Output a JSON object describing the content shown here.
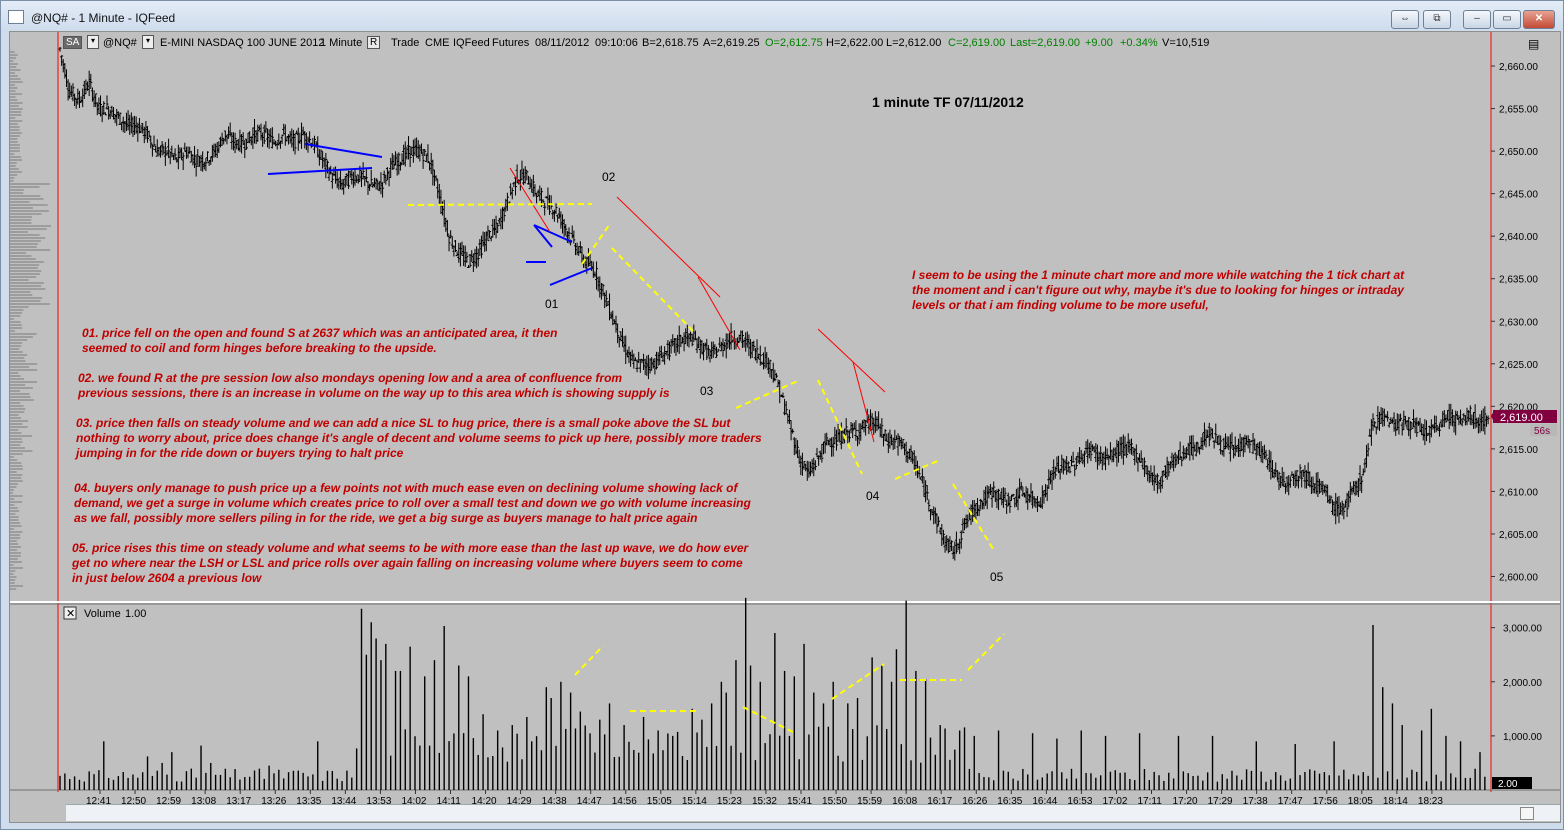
{
  "window": {
    "title": "@NQ# - 1 Minute - IQFeed",
    "controls": [
      "⇔",
      "⧉",
      "–",
      "▭",
      "✕"
    ]
  },
  "toolbar": {
    "sa_label": "SA",
    "symbol": "@NQ#",
    "description": "E-MINI NASDAQ 100 JUNE 2012",
    "interval": "1 Minute",
    "r_label": "R",
    "trade": "Trade",
    "exchange": "CME",
    "feed": "IQFeed",
    "type": "Futures",
    "date": "08/11/2012",
    "time": "09:10:06",
    "bid": "B=2,618.75",
    "ask": "A=2,619.25",
    "open": "O=2,612.75",
    "high": "H=2,622.00",
    "low": "L=2,612.00",
    "close": "C=2,619.00",
    "last": "Last=2,619.00",
    "change": "+9.00",
    "change_pct": "+0.34%",
    "volume": "V=10,519"
  },
  "colors": {
    "background": "#c0c0c0",
    "bars": "#000000",
    "annotation_text": "#c00000",
    "trendline": "#ff0000",
    "pattern_line": "#0000ff",
    "dashed_line": "#ffff00",
    "price_label_bg": "#800040",
    "up_text": "#008000"
  },
  "chart_data": [
    {
      "type": "ohlc",
      "title": "1 minute  TF 07/11/2012",
      "x_tick_labels": [
        "12:41",
        "12:50",
        "12:59",
        "13:08",
        "13:17",
        "13:26",
        "13:35",
        "13:44",
        "13:53",
        "14:02",
        "14:11",
        "14:20",
        "14:29",
        "14:38",
        "14:47",
        "14:56",
        "15:05",
        "15:14",
        "15:23",
        "15:32",
        "15:41",
        "15:50",
        "15:59",
        "16:08",
        "16:17",
        "16:26",
        "16:35",
        "16:44",
        "16:53",
        "17:02",
        "17:11",
        "17:20",
        "17:29",
        "17:38",
        "17:47",
        "17:56",
        "18:05",
        "18:14",
        "18:23"
      ],
      "y_tick_labels": [
        "2,660.00",
        "2,655.00",
        "2,650.00",
        "2,645.00",
        "2,640.00",
        "2,635.00",
        "2,630.00",
        "2,625.00",
        "2,620.00",
        "2,615.00",
        "2,610.00",
        "2,605.00",
        "2,600.00"
      ],
      "ylim": [
        2597,
        2664
      ],
      "current_price_label": "2,619.00",
      "timer_label": "56s",
      "close_path": [
        [
          0,
          2662
        ],
        [
          6,
          2657
        ],
        [
          12,
          2656
        ],
        [
          18,
          2658
        ],
        [
          24,
          2655
        ],
        [
          30,
          2655
        ],
        [
          36,
          2654
        ],
        [
          42,
          2653
        ],
        [
          48,
          2653
        ],
        [
          54,
          2652
        ],
        [
          60,
          2650
        ],
        [
          66,
          2650
        ],
        [
          72,
          2649
        ],
        [
          78,
          2650
        ],
        [
          84,
          2649
        ],
        [
          90,
          2649
        ],
        [
          96,
          2650
        ],
        [
          102,
          2652
        ],
        [
          108,
          2651
        ],
        [
          114,
          2651
        ],
        [
          120,
          2652
        ],
        [
          126,
          2652
        ],
        [
          132,
          2651
        ],
        [
          138,
          2652
        ],
        [
          144,
          2651
        ],
        [
          150,
          2652
        ],
        [
          156,
          2651
        ],
        [
          162,
          2649
        ],
        [
          168,
          2647
        ],
        [
          174,
          2646
        ],
        [
          180,
          2647
        ],
        [
          186,
          2647
        ],
        [
          192,
          2646
        ],
        [
          198,
          2646
        ],
        [
          204,
          2648
        ],
        [
          210,
          2649
        ],
        [
          216,
          2650
        ],
        [
          222,
          2650
        ],
        [
          228,
          2649
        ],
        [
          234,
          2645
        ],
        [
          240,
          2640
        ],
        [
          246,
          2638
        ],
        [
          252,
          2637
        ],
        [
          258,
          2638
        ],
        [
          264,
          2640
        ],
        [
          270,
          2641
        ],
        [
          276,
          2644
        ],
        [
          282,
          2647
        ],
        [
          288,
          2647
        ],
        [
          294,
          2645
        ],
        [
          300,
          2644
        ],
        [
          306,
          2643
        ],
        [
          312,
          2641
        ],
        [
          318,
          2639
        ],
        [
          324,
          2637
        ],
        [
          330,
          2636
        ],
        [
          336,
          2633
        ],
        [
          342,
          2630
        ],
        [
          348,
          2627
        ],
        [
          354,
          2625
        ],
        [
          360,
          2625
        ],
        [
          366,
          2625
        ],
        [
          372,
          2626
        ],
        [
          378,
          2627
        ],
        [
          384,
          2628
        ],
        [
          390,
          2628
        ],
        [
          396,
          2627
        ],
        [
          402,
          2626
        ],
        [
          408,
          2627
        ],
        [
          414,
          2628
        ],
        [
          420,
          2628
        ],
        [
          426,
          2627
        ],
        [
          432,
          2626
        ],
        [
          438,
          2625
        ],
        [
          444,
          2622
        ],
        [
          450,
          2618
        ],
        [
          456,
          2614
        ],
        [
          462,
          2612
        ],
        [
          468,
          2614
        ],
        [
          474,
          2616
        ],
        [
          480,
          2616
        ],
        [
          486,
          2617
        ],
        [
          492,
          2617
        ],
        [
          498,
          2618
        ],
        [
          504,
          2618
        ],
        [
          510,
          2616
        ],
        [
          516,
          2616
        ],
        [
          522,
          2615
        ],
        [
          528,
          2613
        ],
        [
          534,
          2610
        ],
        [
          540,
          2607
        ],
        [
          546,
          2604
        ],
        [
          552,
          2603
        ],
        [
          558,
          2606
        ],
        [
          564,
          2608
        ],
        [
          570,
          2609
        ],
        [
          576,
          2610
        ],
        [
          582,
          2609
        ],
        [
          588,
          2609
        ],
        [
          594,
          2610
        ],
        [
          600,
          2609
        ],
        [
          606,
          2609
        ],
        [
          612,
          2612
        ],
        [
          618,
          2613
        ],
        [
          624,
          2613
        ],
        [
          630,
          2614
        ],
        [
          636,
          2615
        ],
        [
          642,
          2614
        ],
        [
          648,
          2614
        ],
        [
          654,
          2615
        ],
        [
          660,
          2615
        ],
        [
          666,
          2614
        ],
        [
          672,
          2612
        ],
        [
          678,
          2611
        ],
        [
          684,
          2613
        ],
        [
          690,
          2614
        ],
        [
          696,
          2615
        ],
        [
          702,
          2615
        ],
        [
          708,
          2617
        ],
        [
          714,
          2616
        ],
        [
          720,
          2615
        ],
        [
          726,
          2615
        ],
        [
          732,
          2616
        ],
        [
          738,
          2615
        ],
        [
          744,
          2614
        ],
        [
          750,
          2612
        ],
        [
          756,
          2611
        ],
        [
          762,
          2612
        ],
        [
          768,
          2612
        ],
        [
          774,
          2611
        ],
        [
          780,
          2610
        ],
        [
          786,
          2608
        ],
        [
          792,
          2608
        ],
        [
          798,
          2610
        ],
        [
          804,
          2612
        ],
        [
          810,
          2618
        ],
        [
          816,
          2619
        ],
        [
          822,
          2618
        ],
        [
          828,
          2618
        ],
        [
          834,
          2618
        ],
        [
          840,
          2617
        ],
        [
          846,
          2617
        ],
        [
          852,
          2618
        ],
        [
          858,
          2619
        ],
        [
          864,
          2618
        ],
        [
          870,
          2619
        ],
        [
          876,
          2618
        ],
        [
          882,
          2619
        ]
      ]
    },
    {
      "type": "bar",
      "title": "Volume",
      "scale_label": "1.00",
      "y_tick_labels": [
        "3,000.00",
        "2,000.00",
        "1,000.00"
      ],
      "ylim": [
        0,
        3400
      ],
      "current_value_label": "2.00",
      "spikes": [
        [
          28,
          900
        ],
        [
          55,
          620
        ],
        [
          63,
          500
        ],
        [
          70,
          700
        ],
        [
          87,
          820
        ],
        [
          93,
          500
        ],
        [
          130,
          450
        ],
        [
          159,
          900
        ],
        [
          186,
          3350
        ],
        [
          189,
          2500
        ],
        [
          192,
          3100
        ],
        [
          195,
          2800
        ],
        [
          199,
          2400
        ],
        [
          203,
          2700
        ],
        [
          207,
          2200
        ],
        [
          212,
          2200
        ],
        [
          217,
          2650
        ],
        [
          225,
          2100
        ],
        [
          231,
          2400
        ],
        [
          238,
          3030
        ],
        [
          246,
          2300
        ],
        [
          254,
          2100
        ],
        [
          262,
          1400
        ],
        [
          270,
          1100
        ],
        [
          280,
          1200
        ],
        [
          290,
          1350
        ],
        [
          300,
          1900
        ],
        [
          305,
          1700
        ],
        [
          310,
          2000
        ],
        [
          316,
          1800
        ],
        [
          323,
          1450
        ],
        [
          334,
          1300
        ],
        [
          341,
          1600
        ],
        [
          350,
          1200
        ],
        [
          360,
          1350
        ],
        [
          370,
          1100
        ],
        [
          380,
          1000
        ],
        [
          392,
          1500
        ],
        [
          398,
          1300
        ],
        [
          403,
          1600
        ],
        [
          408,
          2000
        ],
        [
          412,
          1800
        ],
        [
          417,
          2400
        ],
        [
          423,
          3550
        ],
        [
          428,
          2300
        ],
        [
          433,
          2000
        ],
        [
          441,
          2900
        ],
        [
          448,
          2200
        ],
        [
          454,
          2100
        ],
        [
          460,
          2700
        ],
        [
          466,
          1800
        ],
        [
          472,
          1600
        ],
        [
          478,
          2000
        ],
        [
          486,
          1600
        ],
        [
          494,
          1700
        ],
        [
          502,
          2450
        ],
        [
          508,
          2300
        ],
        [
          513,
          2000
        ],
        [
          518,
          2600
        ],
        [
          524,
          3500
        ],
        [
          530,
          2200
        ],
        [
          536,
          2050
        ],
        [
          545,
          1200
        ],
        [
          556,
          1100
        ],
        [
          566,
          1000
        ],
        [
          580,
          1100
        ],
        [
          600,
          1050
        ],
        [
          616,
          950
        ],
        [
          632,
          1100
        ],
        [
          646,
          1000
        ],
        [
          668,
          1050
        ],
        [
          690,
          1000
        ],
        [
          712,
          1000
        ],
        [
          740,
          900
        ],
        [
          764,
          850
        ],
        [
          788,
          900
        ],
        [
          812,
          3050
        ],
        [
          816,
          1900
        ],
        [
          822,
          1600
        ],
        [
          830,
          1200
        ],
        [
          840,
          1100
        ],
        [
          846,
          1500
        ],
        [
          856,
          1000
        ],
        [
          866,
          900
        ],
        [
          878,
          700
        ]
      ]
    }
  ],
  "point_labels": [
    "01",
    "02",
    "03",
    "04",
    "05"
  ],
  "annotations": {
    "a1": [
      "01. price fell on the open and found S at 2637 which was an anticipated area, it then",
      "seemed to coil and form hinges before breaking to the upside."
    ],
    "a2": [
      "02. we found R at the pre session low also mondays opening low and a area of confluence from",
      "previous sessions, there is an increase in volume on the way up to this area which is showing supply is"
    ],
    "a3": [
      "03. price then falls on steady volume and we can add a nice SL to hug price, there is a small poke above the SL but",
      "nothing to worry about, price does change it's angle of decent and volume seems to pick up here, possibly more traders",
      "jumping in for the ride down or buyers trying to halt price"
    ],
    "a4": [
      "04. buyers only manage to push price up a few points not with much ease even on declining volume showing lack of",
      "demand, we get a surge in volume which creates price to roll over a small test and down we go with volume increasing",
      "as we fall, possibly more sellers piling in for the ride, we get a big surge as buyers manage to halt price again"
    ],
    "a5": [
      "05. price rises this time on steady volume and what seems to be with more ease than the last up wave, we do how ever",
      "get no where near the LSH or LSL and price rolls over again falling on increasing volume where buyers seem to come",
      "in just below 2604 a previous low"
    ],
    "a6": [
      "I seem to be using the 1 minute chart more and more while watching the 1 tick chart at",
      "the moment and i can't figure out why, maybe it's due to looking for hinges or intraday",
      "levels or that i am finding volume to be more useful,"
    ]
  }
}
